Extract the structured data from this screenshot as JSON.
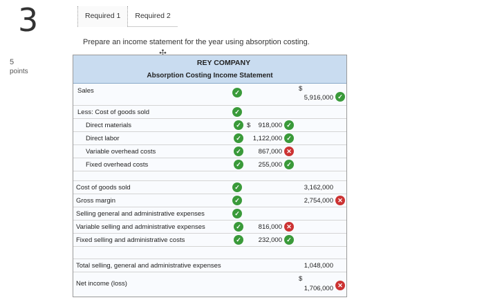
{
  "question": {
    "number": "3",
    "points_value": "5",
    "points_label": "points"
  },
  "tabs": [
    {
      "label": "Required 1"
    },
    {
      "label": "Required 2"
    }
  ],
  "prompt": "Prepare an income statement for the year using absorption costing.",
  "statement": {
    "company": "REY COMPANY",
    "title": "Absorption Costing Income Statement",
    "rows": {
      "sales": {
        "label": "Sales",
        "dollar": "$",
        "amount": "5,916,000"
      },
      "less_cogs": {
        "label": "Less: Cost of goods sold"
      },
      "direct_materials": {
        "label": "Direct materials",
        "dollar": "$",
        "amount": "918,000"
      },
      "direct_labor": {
        "label": "Direct labor",
        "amount": "1,122,000"
      },
      "variable_overhead": {
        "label": "Variable overhead costs",
        "amount": "867,000"
      },
      "fixed_overhead": {
        "label": "Fixed overhead costs",
        "amount": "255,000"
      },
      "cogs": {
        "label": "Cost of goods sold",
        "amount": "3,162,000"
      },
      "gross_margin": {
        "label": "Gross margin",
        "amount": "2,754,000"
      },
      "sga": {
        "label": "Selling general and administrative expenses"
      },
      "variable_selling": {
        "label": "Variable selling and administrative expenses",
        "amount": "816,000"
      },
      "fixed_selling": {
        "label": "Fixed selling and administrative costs",
        "amount": "232,000"
      },
      "total_sga": {
        "label": "Total selling, general and administrative expenses",
        "amount": "1,048,000"
      },
      "net_income": {
        "label": "Net income (loss)",
        "dollar": "$",
        "amount": "1,706,000"
      }
    }
  },
  "colors": {
    "correct": "#3a9a3a",
    "incorrect": "#cc3333",
    "header_bg": "#c9dcf0"
  },
  "icons": {
    "correct": "check-circle-icon",
    "incorrect": "x-circle-icon",
    "cursor": "move-cursor-icon"
  }
}
